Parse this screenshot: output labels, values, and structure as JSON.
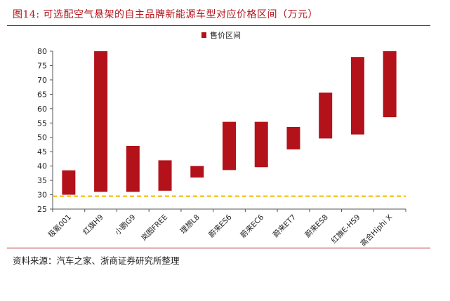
{
  "figure": {
    "title": "图14:   可选配空气悬架的自主品牌新能源车型对应价格区间（万元）",
    "source": "资料来源：汽车之家、浙商证券研究所整理"
  },
  "chart_data": {
    "type": "bar",
    "subtype": "floating-range",
    "legend": {
      "label": "售价区间",
      "placement": "top-center"
    },
    "categories": [
      "极氪001",
      "红旗H9",
      "小鹏G9",
      "岚图FREE",
      "理想L8",
      "蔚来ES6",
      "蔚来EC6",
      "蔚来ET7",
      "蔚来ES8",
      "红旗E-HS9",
      "高合Hiphi X"
    ],
    "series": [
      {
        "name": "售价区间",
        "low": [
          30.0,
          31.0,
          31.0,
          31.4,
          36.0,
          38.6,
          39.6,
          45.8,
          49.6,
          51.0,
          57.0
        ],
        "high": [
          38.5,
          80.0,
          47.0,
          42.0,
          40.0,
          55.4,
          55.4,
          53.6,
          65.6,
          78.0,
          80.0
        ]
      }
    ],
    "reference_line": {
      "value": 29.5,
      "style": "dashed",
      "color": "#f2b800"
    },
    "ylim": [
      25,
      80
    ],
    "yticks": [
      25,
      30,
      35,
      40,
      45,
      50,
      55,
      60,
      65,
      70,
      75,
      80
    ],
    "grid": false,
    "colors": {
      "bar": "#b3121a",
      "axis": "#555555",
      "accent": "#b3121a"
    }
  }
}
